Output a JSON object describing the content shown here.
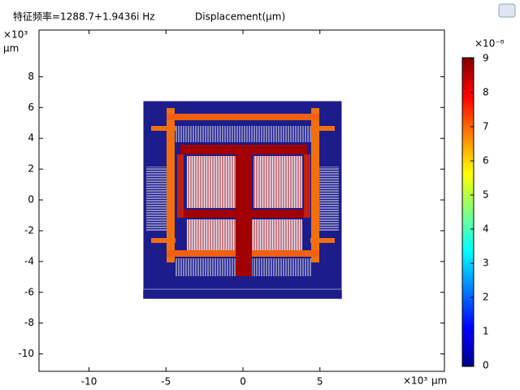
{
  "chart_data": {
    "type": "surface",
    "subtitle": "特征频率=1288.7+1.9436i Hz",
    "title": "Displacement(μm)",
    "x_scale": "×10³",
    "x_label": "μm",
    "y_scale": "×10³",
    "y_label": "μm",
    "xlim": [
      -13.25,
      13.09
    ],
    "xticks": [
      -10,
      -5,
      0,
      5
    ],
    "ylim": [
      -11.13,
      11.03
    ],
    "yticks": [
      -10,
      -8,
      -6,
      -4,
      -2,
      0,
      2,
      4,
      6,
      8
    ],
    "colorbar": {
      "scale": "×10⁻⁸",
      "lim": [
        0,
        9
      ],
      "ticks": [
        0,
        1,
        2,
        3,
        4,
        5,
        6,
        7,
        8,
        9
      ],
      "colormap": [
        "#00008f",
        "#0000ff",
        "#0080ff",
        "#00ffff",
        "#80ff80",
        "#ffff00",
        "#ff8000",
        "#ff0000",
        "#800000"
      ]
    }
  }
}
